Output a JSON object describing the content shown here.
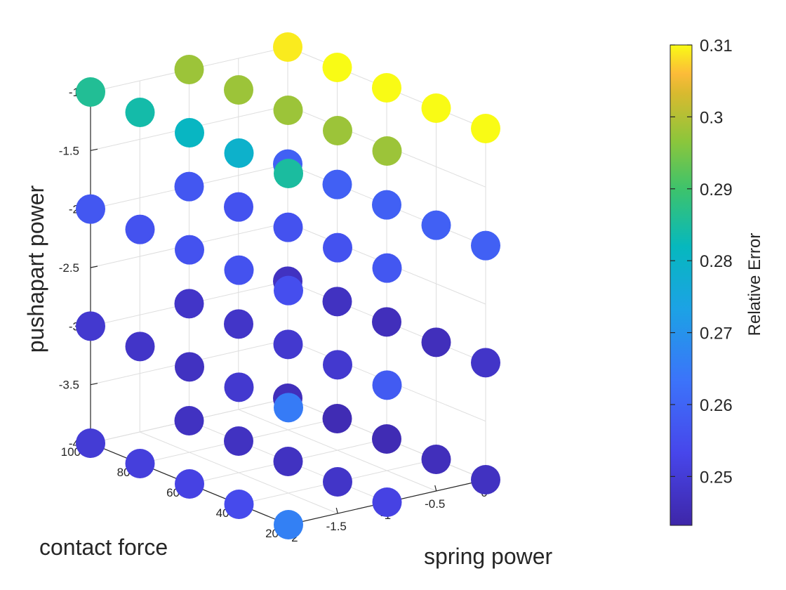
{
  "chart_data": {
    "type": "scatter",
    "projection": "3d",
    "xlabel": "spring power",
    "ylabel": "contact force",
    "zlabel": "pushapart power",
    "colorbar_label": "Relative Error",
    "colormap": "parula",
    "grid": true,
    "x_ticks": [
      "-2",
      "-1.5",
      "-1",
      "-0.5",
      "0"
    ],
    "y_ticks": [
      "20",
      "40",
      "60",
      "80",
      "100"
    ],
    "z_ticks": [
      "-4",
      "-3.5",
      "-3",
      "-2.5",
      "-2",
      "-1.5",
      "-1"
    ],
    "colorbar_ticks": [
      "0.25",
      "0.26",
      "0.27",
      "0.28",
      "0.29",
      "0.3",
      "0.31"
    ],
    "xlim": [
      -2,
      0
    ],
    "ylim": [
      20,
      100
    ],
    "zlim": [
      -4,
      -1
    ],
    "clim": [
      0.2432,
      0.31
    ],
    "x_values": [
      -2,
      -1.5,
      -1,
      -0.5,
      0
    ],
    "y_values": [
      20,
      40,
      60,
      80,
      100
    ],
    "z_values": [
      -4,
      -3,
      -2,
      -1
    ],
    "series": [
      {
        "z": -1,
        "points": [
          {
            "x": -2,
            "y": 100,
            "err": 0.286
          },
          {
            "x": -2,
            "y": 80,
            "err": 0.284
          },
          {
            "x": -2,
            "y": 60,
            "err": 0.281
          },
          {
            "x": -2,
            "y": 40,
            "err": 0.279
          },
          {
            "x": -2,
            "y": 20,
            "err": 0.285
          },
          {
            "x": -1,
            "y": 100,
            "err": 0.298
          },
          {
            "x": -1,
            "y": 80,
            "err": 0.298
          },
          {
            "x": -1,
            "y": 60,
            "err": 0.298
          },
          {
            "x": -1,
            "y": 40,
            "err": 0.298
          },
          {
            "x": -1,
            "y": 20,
            "err": 0.298
          },
          {
            "x": 0,
            "y": 100,
            "err": 0.309
          },
          {
            "x": 0,
            "y": 80,
            "err": 0.31
          },
          {
            "x": 0,
            "y": 60,
            "err": 0.31
          },
          {
            "x": 0,
            "y": 40,
            "err": 0.31
          },
          {
            "x": 0,
            "y": 20,
            "err": 0.31
          }
        ]
      },
      {
        "z": -2,
        "points": [
          {
            "x": -2,
            "y": 100,
            "err": 0.257
          },
          {
            "x": -2,
            "y": 80,
            "err": 0.256
          },
          {
            "x": -2,
            "y": 60,
            "err": 0.256
          },
          {
            "x": -2,
            "y": 40,
            "err": 0.256
          },
          {
            "x": -2,
            "y": 20,
            "err": 0.255
          },
          {
            "x": -1,
            "y": 100,
            "err": 0.257
          },
          {
            "x": -1,
            "y": 80,
            "err": 0.256
          },
          {
            "x": -1,
            "y": 60,
            "err": 0.256
          },
          {
            "x": -1,
            "y": 40,
            "err": 0.256
          },
          {
            "x": -1,
            "y": 20,
            "err": 0.257
          },
          {
            "x": 0,
            "y": 100,
            "err": 0.259
          },
          {
            "x": 0,
            "y": 80,
            "err": 0.259
          },
          {
            "x": 0,
            "y": 60,
            "err": 0.259
          },
          {
            "x": 0,
            "y": 40,
            "err": 0.259
          },
          {
            "x": 0,
            "y": 20,
            "err": 0.259
          }
        ]
      },
      {
        "z": -3,
        "points": [
          {
            "x": -2,
            "y": 100,
            "err": 0.249
          },
          {
            "x": -2,
            "y": 80,
            "err": 0.248
          },
          {
            "x": -2,
            "y": 60,
            "err": 0.247
          },
          {
            "x": -2,
            "y": 40,
            "err": 0.249
          },
          {
            "x": -2,
            "y": 20,
            "err": 0.265
          },
          {
            "x": -1,
            "y": 100,
            "err": 0.248
          },
          {
            "x": -1,
            "y": 80,
            "err": 0.248
          },
          {
            "x": -1,
            "y": 60,
            "err": 0.249
          },
          {
            "x": -1,
            "y": 40,
            "err": 0.249
          },
          {
            "x": -1,
            "y": 20,
            "err": 0.258
          },
          {
            "x": 0,
            "y": 100,
            "err": 0.247
          },
          {
            "x": 0,
            "y": 80,
            "err": 0.247
          },
          {
            "x": 0,
            "y": 60,
            "err": 0.246
          },
          {
            "x": 0,
            "y": 40,
            "err": 0.246
          },
          {
            "x": 0,
            "y": 20,
            "err": 0.248
          }
        ]
      },
      {
        "z": -4,
        "points": [
          {
            "x": -2,
            "y": 100,
            "err": 0.25
          },
          {
            "x": -2,
            "y": 80,
            "err": 0.251
          },
          {
            "x": -2,
            "y": 60,
            "err": 0.252
          },
          {
            "x": -2,
            "y": 40,
            "err": 0.254
          },
          {
            "x": -2,
            "y": 20,
            "err": 0.266
          },
          {
            "x": -1,
            "y": 100,
            "err": 0.247
          },
          {
            "x": -1,
            "y": 80,
            "err": 0.247
          },
          {
            "x": -1,
            "y": 60,
            "err": 0.247
          },
          {
            "x": -1,
            "y": 40,
            "err": 0.248
          },
          {
            "x": -1,
            "y": 20,
            "err": 0.252
          },
          {
            "x": 0,
            "y": 100,
            "err": 0.246
          },
          {
            "x": 0,
            "y": 80,
            "err": 0.245
          },
          {
            "x": 0,
            "y": 60,
            "err": 0.245
          },
          {
            "x": 0,
            "y": 40,
            "err": 0.246
          },
          {
            "x": 0,
            "y": 20,
            "err": 0.247
          }
        ]
      }
    ]
  }
}
